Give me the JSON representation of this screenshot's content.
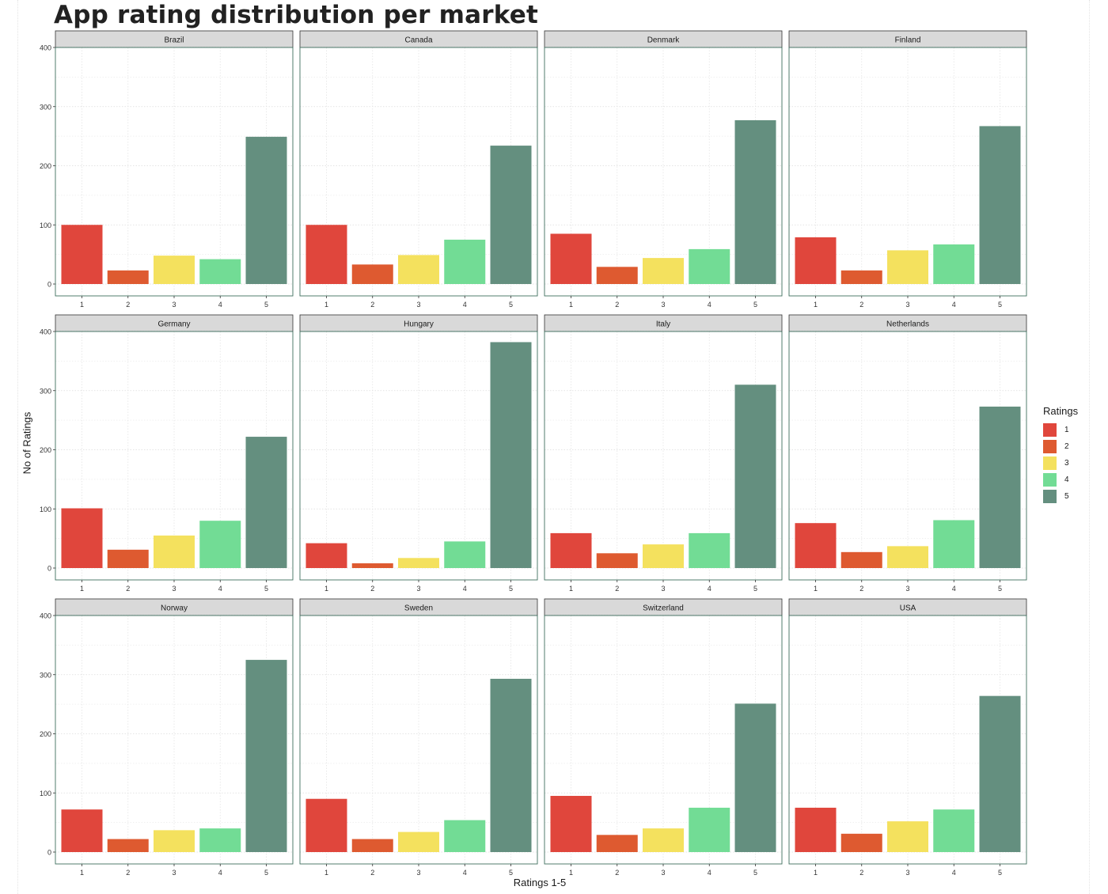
{
  "chart_data": {
    "type": "bar",
    "title": "App rating distribution per market",
    "xlabel": "Ratings 1-5",
    "ylabel": "No of Ratings",
    "categories": [
      "1",
      "2",
      "3",
      "4",
      "5"
    ],
    "yticks": [
      0,
      100,
      200,
      300,
      400
    ],
    "ylim": [
      0,
      400
    ],
    "grid": true,
    "legend": {
      "title": "Ratings",
      "position": "right",
      "items": [
        "1",
        "2",
        "3",
        "4",
        "5"
      ]
    },
    "colors": [
      "#e0463c",
      "#de5a30",
      "#f4e15e",
      "#72dc95",
      "#648f7f"
    ],
    "panels": [
      {
        "name": "Brazil",
        "values": [
          100,
          23,
          48,
          42,
          249
        ]
      },
      {
        "name": "Canada",
        "values": [
          100,
          33,
          49,
          75,
          234
        ]
      },
      {
        "name": "Denmark",
        "values": [
          85,
          29,
          44,
          59,
          277
        ]
      },
      {
        "name": "Finland",
        "values": [
          79,
          23,
          57,
          67,
          267
        ]
      },
      {
        "name": "Germany",
        "values": [
          101,
          31,
          55,
          80,
          222
        ]
      },
      {
        "name": "Hungary",
        "values": [
          42,
          8,
          17,
          45,
          382
        ]
      },
      {
        "name": "Italy",
        "values": [
          59,
          25,
          40,
          59,
          310
        ]
      },
      {
        "name": "Netherlands",
        "values": [
          76,
          27,
          37,
          81,
          273
        ]
      },
      {
        "name": "Norway",
        "values": [
          72,
          22,
          37,
          40,
          325
        ]
      },
      {
        "name": "Sweden",
        "values": [
          90,
          22,
          34,
          54,
          293
        ]
      },
      {
        "name": "Switzerland",
        "values": [
          95,
          29,
          40,
          75,
          251
        ]
      },
      {
        "name": "USA",
        "values": [
          75,
          31,
          52,
          72,
          264
        ]
      }
    ]
  }
}
